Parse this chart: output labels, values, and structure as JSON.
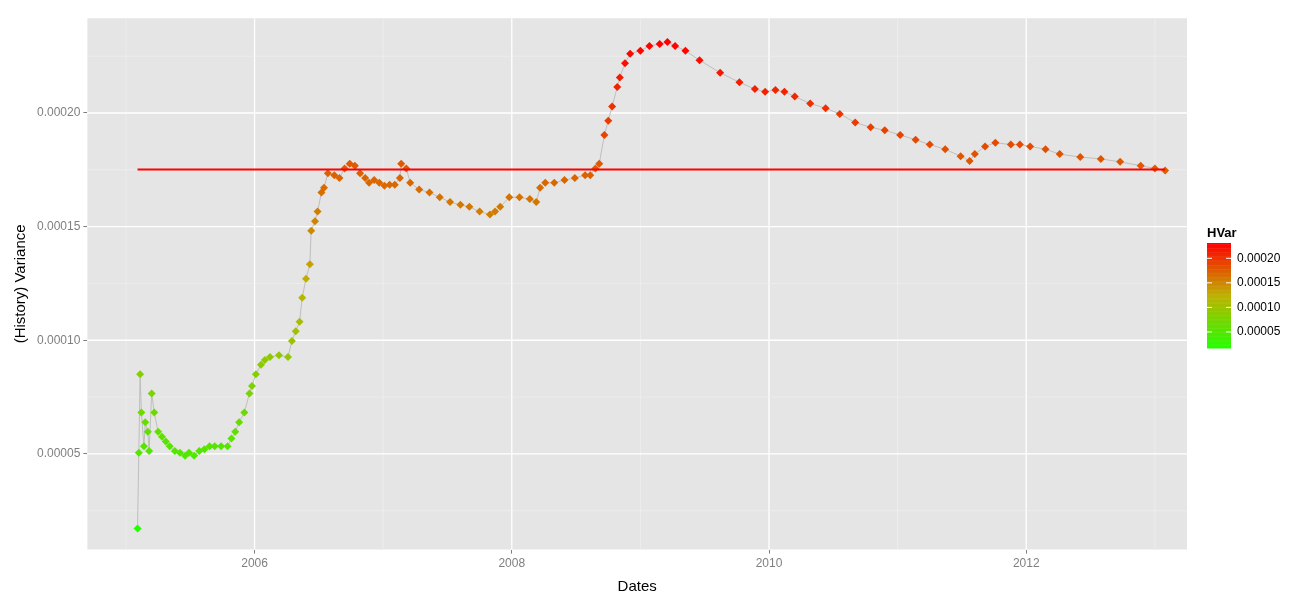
{
  "chart_data": {
    "type": "line",
    "xlabel": "Dates",
    "ylabel": "(History) Variance",
    "clabel": "HVar",
    "xlim": [
      2004.7,
      2013.25
    ],
    "xticks": [
      2006,
      2008,
      2010,
      2012
    ],
    "ylim": [
      7.9e-06,
      0.0002417
    ],
    "yticks": [
      {
        "value": 5e-05,
        "label": "0.00005"
      },
      {
        "value": 0.0001,
        "label": "0.00010"
      },
      {
        "value": 0.00015,
        "label": "0.00015"
      },
      {
        "value": 0.0002,
        "label": "0.00020"
      }
    ],
    "clim": [
      1.72e-05,
      0.0002312
    ],
    "cticks": [
      {
        "value": 5e-05,
        "label": "0.00005"
      },
      {
        "value": 0.0001,
        "label": "0.00010"
      },
      {
        "value": 0.00015,
        "label": "0.00015"
      },
      {
        "value": 0.0002,
        "label": "0.00020"
      }
    ],
    "grid": true,
    "marker": "diamond",
    "line_style": "solid",
    "ref_lines": [
      {
        "axis": "y",
        "value": 0.0001751,
        "color": "#ff0000"
      }
    ],
    "series": [
      {
        "color": "#bebebe",
        "x": [
          2005.09,
          2005.1,
          2005.11,
          2005.12,
          2005.14,
          2005.15,
          2005.17,
          2005.18,
          2005.2,
          2005.22,
          2005.25,
          2005.28,
          2005.31,
          2005.34,
          2005.38,
          2005.42,
          2005.46,
          2005.49,
          2005.53,
          2005.57,
          2005.61,
          2005.65,
          2005.69,
          2005.74,
          2005.79,
          2005.82,
          2005.85,
          2005.88,
          2005.92,
          2005.96,
          2005.98,
          2006.01,
          2006.05,
          2006.08,
          2006.12,
          2006.19,
          2006.26,
          2006.29,
          2006.32,
          2006.35,
          2006.37,
          2006.4,
          2006.43,
          2006.44,
          2006.47,
          2006.49,
          2006.52,
          2006.54,
          2006.57,
          2006.62,
          2006.66,
          2006.7,
          2006.74,
          2006.78,
          2006.82,
          2006.86,
          2006.89,
          2006.93,
          2006.97,
          2007.01,
          2007.05,
          2007.09,
          2007.13,
          2007.14,
          2007.18,
          2007.21,
          2007.28,
          2007.36,
          2007.44,
          2007.52,
          2007.6,
          2007.67,
          2007.75,
          2007.83,
          2007.87,
          2007.91,
          2007.98,
          2008.06,
          2008.14,
          2008.19,
          2008.22,
          2008.26,
          2008.33,
          2008.41,
          2008.49,
          2008.57,
          2008.61,
          2008.65,
          2008.68,
          2008.72,
          2008.75,
          2008.78,
          2008.82,
          2008.84,
          2008.88,
          2008.92,
          2009.0,
          2009.07,
          2009.15,
          2009.21,
          2009.27,
          2009.35,
          2009.46,
          2009.62,
          2009.77,
          2009.89,
          2009.97,
          2010.05,
          2010.12,
          2010.2,
          2010.32,
          2010.44,
          2010.55,
          2010.67,
          2010.79,
          2010.9,
          2011.02,
          2011.14,
          2011.25,
          2011.37,
          2011.49,
          2011.56,
          2011.6,
          2011.68,
          2011.76,
          2011.88,
          2011.95,
          2012.03,
          2012.15,
          2012.26,
          2012.42,
          2012.58,
          2012.73,
          2012.89,
          2013.0,
          2013.08
        ],
        "values": [
          1.72e-05,
          5.05e-05,
          8.5e-05,
          6.82e-05,
          5.34e-05,
          6.39e-05,
          5.97e-05,
          5.13e-05,
          7.66e-05,
          6.82e-05,
          5.97e-05,
          5.76e-05,
          5.55e-05,
          5.34e-05,
          5.13e-05,
          5.05e-05,
          4.92e-05,
          5.05e-05,
          4.92e-05,
          5.13e-05,
          5.21e-05,
          5.34e-05,
          5.34e-05,
          5.34e-05,
          5.34e-05,
          5.68e-05,
          5.97e-05,
          6.39e-05,
          6.82e-05,
          7.66e-05,
          7.99e-05,
          8.5e-05,
          8.92e-05,
          9.13e-05,
          9.26e-05,
          9.34e-05,
          9.26e-05,
          9.97e-05,
          0.000104,
          0.0001082,
          0.0001187,
          0.0001271,
          0.0001334,
          0.0001482,
          0.0001524,
          0.0001566,
          0.000165,
          0.0001671,
          0.0001735,
          0.0001726,
          0.0001714,
          0.0001756,
          0.0001777,
          0.0001768,
          0.0001735,
          0.0001714,
          0.0001693,
          0.0001705,
          0.0001693,
          0.000168,
          0.0001684,
          0.0001684,
          0.0001714,
          0.0001777,
          0.0001756,
          0.0001693,
          0.0001663,
          0.000165,
          0.0001629,
          0.0001608,
          0.0001596,
          0.0001587,
          0.0001566,
          0.0001553,
          0.0001566,
          0.0001587,
          0.0001629,
          0.0001629,
          0.0001621,
          0.0001608,
          0.0001671,
          0.0001693,
          0.0001693,
          0.0001705,
          0.0001714,
          0.0001726,
          0.0001726,
          0.0001756,
          0.0001777,
          0.0001903,
          0.0001966,
          0.0002029,
          0.0002114,
          0.0002156,
          0.0002219,
          0.0002261,
          0.0002274,
          0.0002295,
          0.0002303,
          0.0002312,
          0.0002295,
          0.0002274,
          0.0002232,
          0.0002177,
          0.0002135,
          0.0002105,
          0.0002093,
          0.0002101,
          0.0002093,
          0.0002072,
          0.0002042,
          0.0002021,
          0.0001996,
          0.0001958,
          0.0001937,
          0.0001924,
          0.0001903,
          0.0001882,
          0.0001861,
          0.000184,
          0.000181,
          0.0001789,
          0.0001819,
          0.0001853,
          0.0001869,
          0.0001861,
          0.0001861,
          0.0001853,
          0.000184,
          0.0001819,
          0.0001806,
          0.0001798,
          0.0001785,
          0.0001768,
          0.0001756,
          0.0001747
        ]
      }
    ]
  }
}
